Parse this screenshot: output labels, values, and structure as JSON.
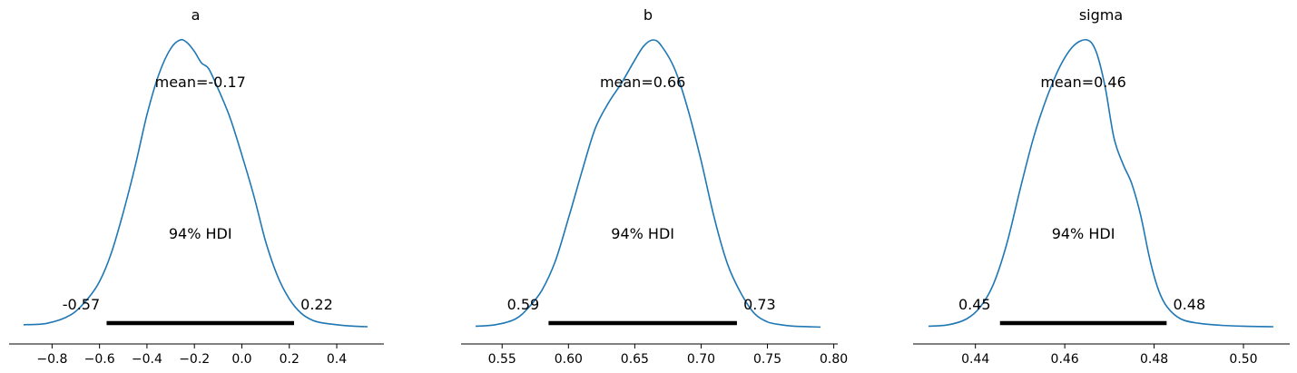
{
  "figure": {
    "background": "#ffffff",
    "curve_color": "#1f77b4",
    "hdi_color": "#000000"
  },
  "chart_data": [
    {
      "type": "line",
      "title": "a",
      "mean_label": "mean=-0.17",
      "hdi_label": "94% HDI",
      "hdi_low_label": "-0.57",
      "hdi_high_label": "0.22",
      "hdi": [
        -0.57,
        0.22
      ],
      "xlim": [
        -0.92,
        0.53
      ],
      "ylim": [
        0,
        1
      ],
      "ticks": [
        -0.8,
        -0.6,
        -0.4,
        -0.2,
        0.0,
        0.2,
        0.4
      ],
      "tick_labels": [
        "−0.8",
        "−0.6",
        "−0.4",
        "−0.2",
        "0.0",
        "0.2",
        "0.4"
      ],
      "density": {
        "x": [
          -0.92,
          -0.82,
          -0.72,
          -0.65,
          -0.6,
          -0.55,
          -0.5,
          -0.45,
          -0.4,
          -0.35,
          -0.3,
          -0.26,
          -0.23,
          -0.2,
          -0.17,
          -0.14,
          -0.1,
          -0.05,
          0.0,
          0.05,
          0.1,
          0.15,
          0.2,
          0.25,
          0.3,
          0.35,
          0.4,
          0.45,
          0.53
        ],
        "y": [
          0.01,
          0.015,
          0.045,
          0.1,
          0.16,
          0.26,
          0.4,
          0.56,
          0.74,
          0.88,
          0.97,
          1.0,
          0.99,
          0.96,
          0.92,
          0.9,
          0.83,
          0.73,
          0.6,
          0.46,
          0.3,
          0.18,
          0.1,
          0.05,
          0.025,
          0.015,
          0.01,
          0.006,
          0.003
        ]
      }
    },
    {
      "type": "line",
      "title": "b",
      "mean_label": "mean=0.66",
      "hdi_label": "94% HDI",
      "hdi_low_label": "0.59",
      "hdi_high_label": "0.73",
      "hdi": [
        0.585,
        0.727
      ],
      "xlim": [
        0.53,
        0.79
      ],
      "ylim": [
        0,
        1
      ],
      "ticks": [
        0.55,
        0.6,
        0.65,
        0.7,
        0.75,
        0.8
      ],
      "tick_labels": [
        "0.55",
        "0.60",
        "0.65",
        "0.70",
        "0.75",
        "0.80"
      ],
      "density": {
        "x": [
          0.53,
          0.545,
          0.56,
          0.57,
          0.58,
          0.59,
          0.6,
          0.61,
          0.62,
          0.63,
          0.64,
          0.65,
          0.657,
          0.664,
          0.67,
          0.68,
          0.69,
          0.7,
          0.71,
          0.72,
          0.73,
          0.74,
          0.75,
          0.76,
          0.77,
          0.79
        ],
        "y": [
          0.005,
          0.01,
          0.03,
          0.07,
          0.13,
          0.23,
          0.38,
          0.54,
          0.69,
          0.78,
          0.85,
          0.93,
          0.98,
          1.0,
          0.98,
          0.9,
          0.76,
          0.58,
          0.38,
          0.22,
          0.12,
          0.05,
          0.02,
          0.01,
          0.005,
          0.002
        ]
      }
    },
    {
      "type": "line",
      "title": "sigma",
      "mean_label": "mean=0.46",
      "hdi_label": "94% HDI",
      "hdi_low_label": "0.45",
      "hdi_high_label": "0.48",
      "hdi": [
        0.4455,
        0.4828
      ],
      "xlim": [
        0.4295,
        0.5067
      ],
      "ylim": [
        0,
        1
      ],
      "ticks": [
        0.44,
        0.46,
        0.48,
        0.5
      ],
      "tick_labels": [
        "0.44",
        "0.46",
        "0.48",
        "0.50"
      ],
      "density": {
        "x": [
          0.4295,
          0.434,
          0.438,
          0.441,
          0.444,
          0.447,
          0.45,
          0.453,
          0.456,
          0.459,
          0.462,
          0.465,
          0.467,
          0.469,
          0.471,
          0.473,
          0.475,
          0.477,
          0.479,
          0.481,
          0.483,
          0.486,
          0.49,
          0.495,
          0.5,
          0.5067
        ],
        "y": [
          0.005,
          0.01,
          0.03,
          0.07,
          0.15,
          0.29,
          0.48,
          0.66,
          0.8,
          0.91,
          0.98,
          1.0,
          0.96,
          0.84,
          0.66,
          0.57,
          0.5,
          0.39,
          0.24,
          0.13,
          0.07,
          0.03,
          0.015,
          0.008,
          0.005,
          0.003
        ]
      }
    }
  ]
}
